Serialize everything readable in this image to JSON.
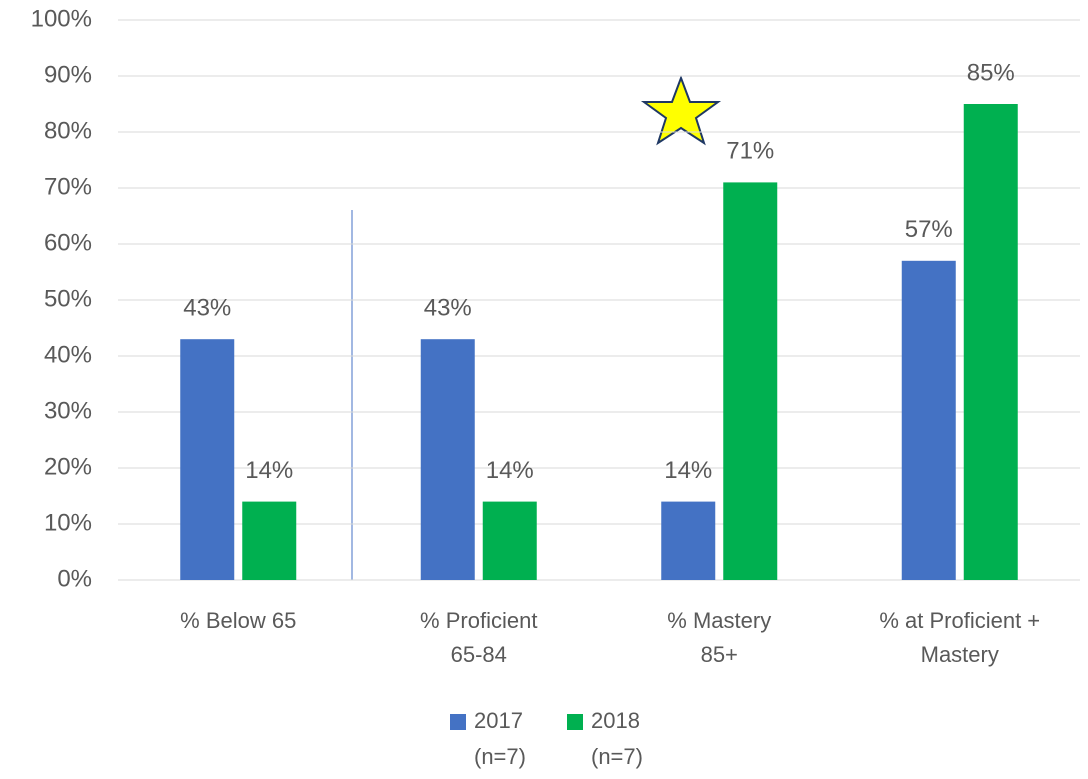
{
  "chart_data": {
    "type": "bar",
    "categories": [
      "% Below 65",
      "% Proficient\n65-84",
      "% Mastery\n85+",
      "% at Proficient +\nMastery"
    ],
    "series": [
      {
        "name": "2017\n(n=7)",
        "color": "#4472c4",
        "values": [
          43,
          43,
          14,
          57
        ],
        "value_labels": [
          "43%",
          "43%",
          "14%",
          "57%"
        ]
      },
      {
        "name": "2018\n(n=7)",
        "color": "#00b050",
        "values": [
          14,
          14,
          71,
          85
        ],
        "value_labels": [
          "14%",
          "14%",
          "71%",
          "85%"
        ]
      }
    ],
    "ylim": [
      0,
      100
    ],
    "yticks": [
      {
        "value": 0,
        "label": "0%"
      },
      {
        "value": 10,
        "label": "10%"
      },
      {
        "value": 20,
        "label": "20%"
      },
      {
        "value": 30,
        "label": "30%"
      },
      {
        "value": 40,
        "label": "40%"
      },
      {
        "value": 50,
        "label": "50%"
      },
      {
        "value": 60,
        "label": "60%"
      },
      {
        "value": 70,
        "label": "70%"
      },
      {
        "value": 80,
        "label": "80%"
      },
      {
        "value": 90,
        "label": "90%"
      },
      {
        "value": 100,
        "label": "100%"
      }
    ],
    "grid": true,
    "legend": "bottom"
  }
}
